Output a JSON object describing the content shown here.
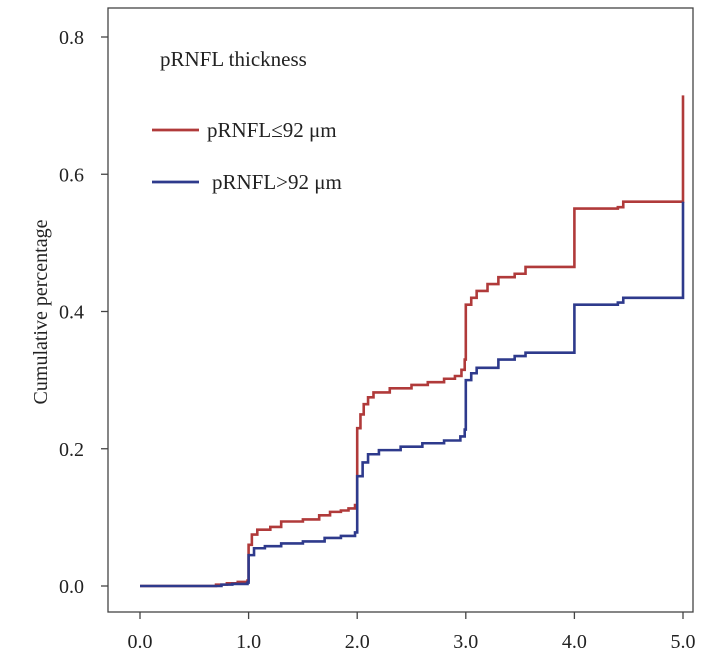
{
  "chart_data": {
    "type": "line",
    "step": true,
    "title": "",
    "xlabel": "",
    "ylabel": "Cumulative percentage",
    "xlim": [
      0,
      5
    ],
    "ylim": [
      0,
      0.8
    ],
    "x_ticks": [
      "0.0",
      "1.0",
      "2.0",
      "3.0",
      "4.0",
      "5.0"
    ],
    "y_ticks": [
      "0.0",
      "0.2",
      "0.4",
      "0.6",
      "0.8"
    ],
    "grid": false,
    "legend": {
      "title": "pRNFL thickness",
      "placement": "top-left"
    },
    "series": [
      {
        "name": "pRNFL≤92 μm",
        "color": "#b03a3a",
        "points": [
          [
            0.0,
            0.0
          ],
          [
            0.65,
            0.0
          ],
          [
            0.7,
            0.002
          ],
          [
            0.8,
            0.004
          ],
          [
            0.9,
            0.006
          ],
          [
            0.99,
            0.008
          ],
          [
            1.0,
            0.06
          ],
          [
            1.03,
            0.075
          ],
          [
            1.08,
            0.082
          ],
          [
            1.2,
            0.086
          ],
          [
            1.3,
            0.094
          ],
          [
            1.5,
            0.097
          ],
          [
            1.65,
            0.103
          ],
          [
            1.75,
            0.108
          ],
          [
            1.85,
            0.11
          ],
          [
            1.92,
            0.113
          ],
          [
            1.98,
            0.118
          ],
          [
            2.0,
            0.23
          ],
          [
            2.03,
            0.25
          ],
          [
            2.06,
            0.265
          ],
          [
            2.1,
            0.275
          ],
          [
            2.15,
            0.282
          ],
          [
            2.3,
            0.288
          ],
          [
            2.5,
            0.293
          ],
          [
            2.65,
            0.297
          ],
          [
            2.8,
            0.302
          ],
          [
            2.9,
            0.306
          ],
          [
            2.96,
            0.315
          ],
          [
            2.99,
            0.33
          ],
          [
            3.0,
            0.41
          ],
          [
            3.05,
            0.42
          ],
          [
            3.1,
            0.43
          ],
          [
            3.2,
            0.44
          ],
          [
            3.3,
            0.45
          ],
          [
            3.45,
            0.455
          ],
          [
            3.55,
            0.465
          ],
          [
            3.99,
            0.465
          ],
          [
            4.0,
            0.55
          ],
          [
            4.4,
            0.552
          ],
          [
            4.45,
            0.56
          ],
          [
            4.99,
            0.56
          ],
          [
            5.0,
            0.715
          ]
        ]
      },
      {
        "name": "pRNFL>92 μm",
        "color": "#2e3a8c",
        "points": [
          [
            0.0,
            0.0
          ],
          [
            0.65,
            0.0
          ],
          [
            0.75,
            0.002
          ],
          [
            0.85,
            0.003
          ],
          [
            0.99,
            0.005
          ],
          [
            1.0,
            0.045
          ],
          [
            1.05,
            0.055
          ],
          [
            1.15,
            0.058
          ],
          [
            1.3,
            0.062
          ],
          [
            1.5,
            0.065
          ],
          [
            1.7,
            0.07
          ],
          [
            1.85,
            0.073
          ],
          [
            1.98,
            0.078
          ],
          [
            2.0,
            0.16
          ],
          [
            2.05,
            0.18
          ],
          [
            2.1,
            0.192
          ],
          [
            2.2,
            0.198
          ],
          [
            2.4,
            0.203
          ],
          [
            2.6,
            0.208
          ],
          [
            2.8,
            0.212
          ],
          [
            2.95,
            0.218
          ],
          [
            2.99,
            0.228
          ],
          [
            3.0,
            0.3
          ],
          [
            3.05,
            0.31
          ],
          [
            3.1,
            0.318
          ],
          [
            3.3,
            0.33
          ],
          [
            3.45,
            0.335
          ],
          [
            3.55,
            0.34
          ],
          [
            3.99,
            0.34
          ],
          [
            4.0,
            0.41
          ],
          [
            4.4,
            0.413
          ],
          [
            4.45,
            0.42
          ],
          [
            5.0,
            0.42
          ],
          [
            5.0,
            0.56
          ]
        ]
      }
    ]
  }
}
